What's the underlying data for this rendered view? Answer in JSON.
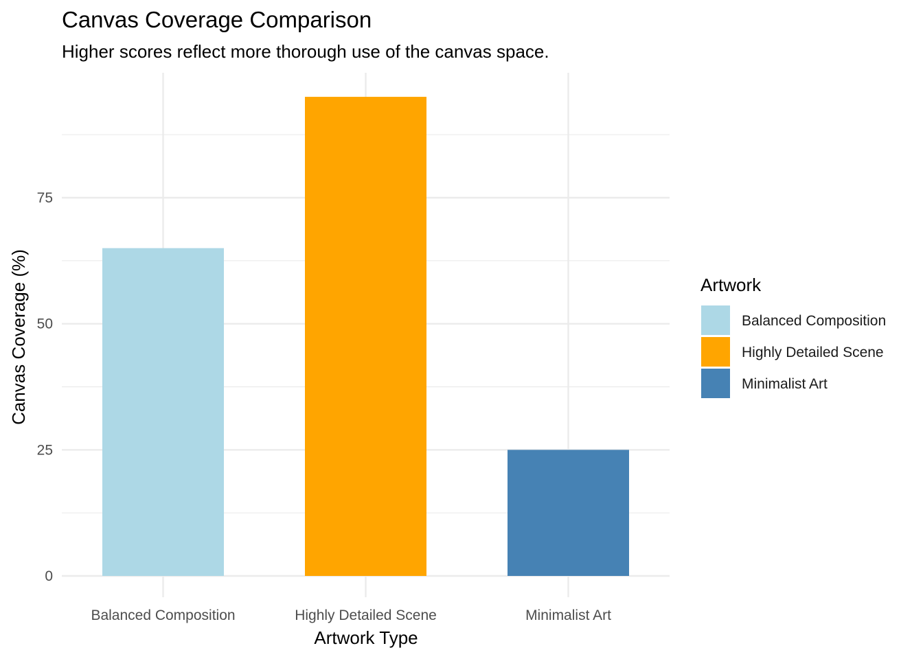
{
  "chart_data": {
    "type": "bar",
    "title": "Canvas Coverage Comparison",
    "subtitle": "Higher scores reflect more thorough use of the canvas space.",
    "xlabel": "Artwork Type",
    "ylabel": "Canvas Coverage (%)",
    "categories": [
      "Balanced Composition",
      "Highly Detailed Scene",
      "Minimalist Art"
    ],
    "values": [
      65,
      95,
      25
    ],
    "colors": [
      "#add8e6",
      "#ffa500",
      "#4682b4"
    ],
    "ylim": [
      0,
      100
    ],
    "yticks": [
      0,
      25,
      50,
      75
    ],
    "ytick_labels": [
      "0",
      "25",
      "50",
      "75"
    ],
    "grid": true,
    "legend": {
      "title": "Artwork",
      "placement": "right",
      "entries": [
        "Balanced Composition",
        "Highly Detailed Scene",
        "Minimalist Art"
      ]
    }
  }
}
